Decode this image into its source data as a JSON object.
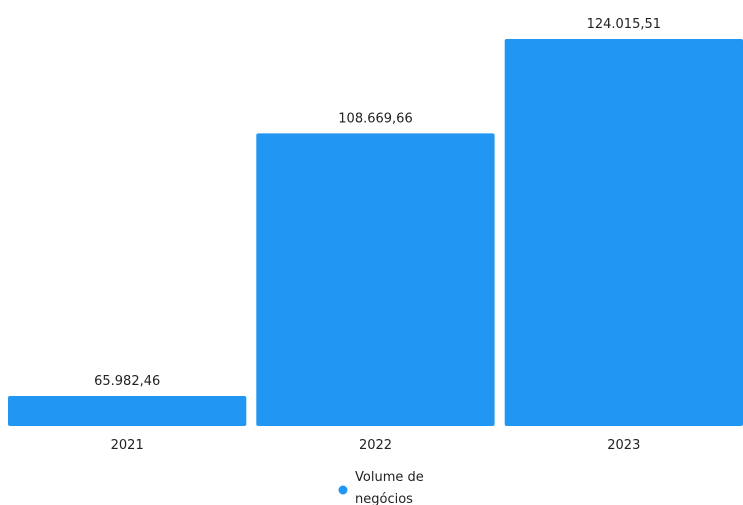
{
  "chart_data": {
    "type": "bar",
    "categories": [
      "2021",
      "2022",
      "2023"
    ],
    "series": [
      {
        "name": "Volume de negócios",
        "values": [
          65982.46,
          108669.66,
          124015.51
        ],
        "labels": [
          "65.982,46",
          "108.669,66",
          "124.015,51"
        ],
        "color": "#2196f3"
      }
    ],
    "legend": {
      "position": "bottom",
      "line1": "Volume de",
      "line2": "negócios"
    },
    "grid": false,
    "y_axis_visible": false
  }
}
